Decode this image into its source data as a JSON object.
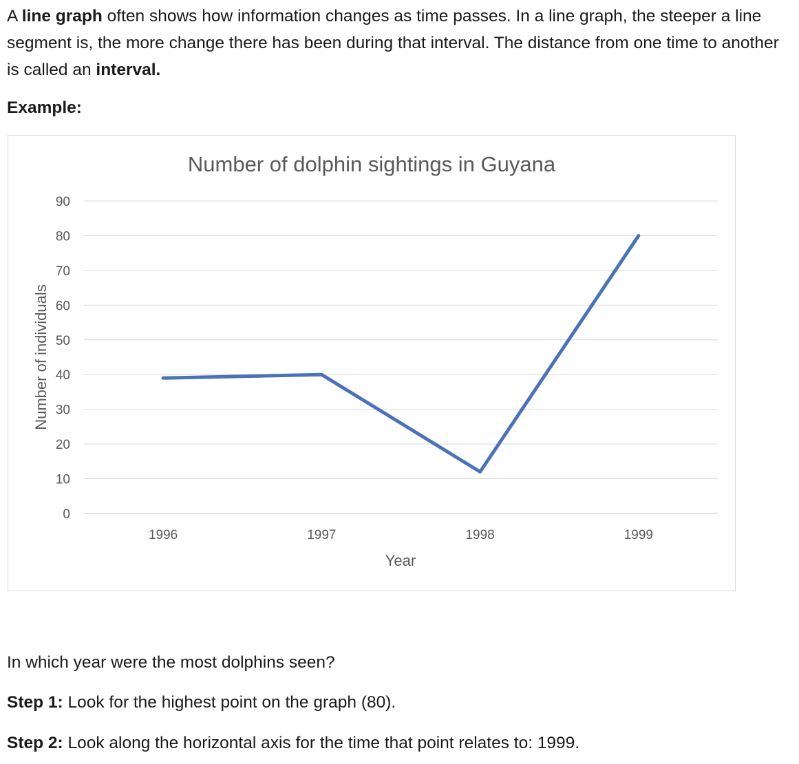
{
  "intro": {
    "sentence1_prefix": " A ",
    "sentence1_bold": "line graph",
    "sentence1_rest": " often shows how information changes as time passes. In a line graph, the steeper a line segment is, the more change there has been during that interval. The distance from one time to another is called an ",
    "sentence1_bold2": "interval.",
    "heading": "Example:"
  },
  "chart_data": {
    "type": "line",
    "title": "Number of dolphin sightings in Guyana",
    "xlabel": "Year",
    "ylabel": "Number of individuals",
    "categories": [
      "1996",
      "1997",
      "1998",
      "1999"
    ],
    "series": [
      {
        "values": [
          39,
          40,
          12,
          80
        ]
      }
    ],
    "ylim": [
      0,
      90
    ],
    "yticks": [
      "0",
      "10",
      "20",
      "30",
      "40",
      "50",
      "60",
      "70",
      "80",
      "90"
    ],
    "grid": true,
    "legend": "none",
    "line_color": "#4a72b8",
    "grid_color": "#d9d9d9",
    "text_color": "#595959"
  },
  "question": {
    "text": "In which year were the most dolphins seen?",
    "step1_label": "Step 1:",
    "step1_text": " Look for the highest point on the graph (80).",
    "step2_label": "Step 2:",
    "step2_text": " Look along the horizontal axis for the time that point relates to: 1999."
  }
}
